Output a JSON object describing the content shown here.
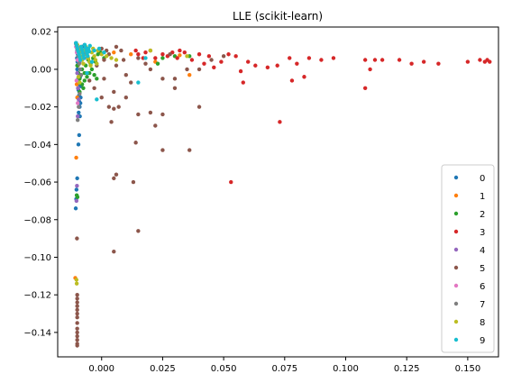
{
  "chart_data": {
    "type": "scatter",
    "title": "LLE (scikit-learn)",
    "xlabel": "",
    "ylabel": "",
    "xlim": [
      -0.018,
      0.1626
    ],
    "ylim": [
      -0.153,
      0.0225
    ],
    "x_ticks": [
      0.0,
      0.025,
      0.05,
      0.075,
      0.1,
      0.125,
      0.15
    ],
    "x_tick_labels": [
      "0.000",
      "0.025",
      "0.050",
      "0.075",
      "0.100",
      "0.125",
      "0.150"
    ],
    "y_ticks": [
      0.02,
      0.0,
      -0.02,
      -0.04,
      -0.06,
      -0.08,
      -0.1,
      -0.12,
      -0.14
    ],
    "y_tick_labels": [
      "0.02",
      "0.00",
      "−0.02",
      "−0.04",
      "−0.06",
      "−0.08",
      "−0.10",
      "−0.12",
      "−0.14"
    ],
    "grid": false,
    "legend_position": "lower-right",
    "series": [
      {
        "name": "0",
        "color": "#1f77b4",
        "points": [
          [
            -0.0105,
            0.014
          ],
          [
            -0.0102,
            0.012
          ],
          [
            -0.01,
            0.01
          ],
          [
            -0.0098,
            0.008
          ],
          [
            -0.0101,
            0.006
          ],
          [
            -0.0099,
            0.004
          ],
          [
            -0.0097,
            0.002
          ],
          [
            -0.01,
            0.0
          ],
          [
            -0.0098,
            -0.002
          ],
          [
            -0.0096,
            -0.005
          ],
          [
            -0.0094,
            -0.008
          ],
          [
            -0.0095,
            -0.011
          ],
          [
            -0.0093,
            -0.014
          ],
          [
            -0.0092,
            -0.017
          ],
          [
            -0.009,
            -0.02
          ],
          [
            -0.0094,
            -0.023
          ],
          [
            -0.0089,
            -0.025
          ],
          [
            -0.0087,
            -0.018
          ],
          [
            -0.0091,
            -0.012
          ],
          [
            -0.0086,
            -0.015
          ],
          [
            -0.0088,
            -0.004
          ],
          [
            -0.0085,
            -0.009
          ],
          [
            -0.0092,
            -0.035
          ],
          [
            -0.0095,
            -0.04
          ],
          [
            -0.01,
            -0.058
          ],
          [
            -0.0103,
            -0.064
          ],
          [
            -0.0106,
            -0.074
          ],
          [
            -0.0104,
            -0.069
          ],
          [
            -0.008,
            0.012
          ],
          [
            -0.0075,
            0.01
          ],
          [
            -0.007,
            0.013
          ]
        ]
      },
      {
        "name": "1",
        "color": "#ff7f0e",
        "points": [
          [
            -0.01,
            0.013
          ],
          [
            -0.0095,
            0.01
          ],
          [
            -0.009,
            0.006
          ],
          [
            -0.0098,
            0.002
          ],
          [
            -0.0102,
            -0.008
          ],
          [
            -0.01,
            -0.015
          ],
          [
            -0.0104,
            -0.047
          ],
          [
            -0.0108,
            -0.111
          ],
          [
            -0.006,
            0.01
          ],
          [
            0.012,
            0.008
          ],
          [
            0.022,
            0.004
          ],
          [
            0.032,
            0.0075
          ],
          [
            0.036,
            -0.003
          ],
          [
            -0.0085,
            0.012
          ],
          [
            0.005,
            0.009
          ]
        ]
      },
      {
        "name": "2",
        "color": "#2ca02c",
        "points": [
          [
            -0.01,
            0.002
          ],
          [
            -0.0095,
            -0.002
          ],
          [
            -0.009,
            -0.005
          ],
          [
            -0.008,
            -0.008
          ],
          [
            -0.007,
            -0.006
          ],
          [
            -0.006,
            -0.004
          ],
          [
            -0.005,
            -0.002
          ],
          [
            -0.004,
            0.0
          ],
          [
            -0.003,
            -0.003
          ],
          [
            -0.002,
            -0.005
          ],
          [
            -0.009,
            -0.012
          ],
          [
            -0.0085,
            -0.003
          ],
          [
            -0.0075,
            -0.01
          ],
          [
            -0.0065,
            0.002
          ],
          [
            -0.0055,
            0.005
          ],
          [
            -0.0045,
            0.003
          ],
          [
            -0.0035,
            0.006
          ],
          [
            -0.0025,
            0.004
          ],
          [
            -0.0015,
            0.008
          ],
          [
            -0.0005,
            0.009
          ],
          [
            0.001,
            0.006
          ],
          [
            -0.008,
            0.0
          ],
          [
            -0.01,
            0.009
          ],
          [
            -0.0095,
            0.011
          ],
          [
            -0.0102,
            -0.067
          ],
          [
            -0.0099,
            -0.068
          ],
          [
            0.025,
            0.006
          ],
          [
            0.03,
            0.007
          ],
          [
            0.036,
            0.007
          ],
          [
            0.023,
            0.003
          ],
          [
            -0.007,
            -0.002
          ]
        ]
      },
      {
        "name": "3",
        "color": "#d62728",
        "points": [
          [
            0.015,
            0.008
          ],
          [
            0.018,
            0.009
          ],
          [
            0.02,
            0.01
          ],
          [
            0.022,
            0.006
          ],
          [
            0.025,
            0.008
          ],
          [
            0.027,
            0.007
          ],
          [
            0.029,
            0.009
          ],
          [
            0.031,
            0.006
          ],
          [
            0.034,
            0.009
          ],
          [
            0.037,
            0.005
          ],
          [
            0.04,
            0.008
          ],
          [
            0.042,
            0.003
          ],
          [
            0.044,
            0.007
          ],
          [
            0.046,
            0.001
          ],
          [
            0.049,
            0.004
          ],
          [
            0.052,
            0.008
          ],
          [
            0.055,
            0.007
          ],
          [
            0.057,
            -0.001
          ],
          [
            0.06,
            0.004
          ],
          [
            0.063,
            0.002
          ],
          [
            0.068,
            0.001
          ],
          [
            0.072,
            0.002
          ],
          [
            0.077,
            0.006
          ],
          [
            0.08,
            0.003
          ],
          [
            0.085,
            0.006
          ],
          [
            0.09,
            0.005
          ],
          [
            0.095,
            0.006
          ],
          [
            0.083,
            -0.004
          ],
          [
            0.078,
            -0.006
          ],
          [
            0.058,
            -0.007
          ],
          [
            0.108,
            0.005
          ],
          [
            0.112,
            0.005
          ],
          [
            0.115,
            0.005
          ],
          [
            0.11,
            0.0
          ],
          [
            0.108,
            -0.01
          ],
          [
            0.122,
            0.005
          ],
          [
            0.127,
            0.003
          ],
          [
            0.132,
            0.004
          ],
          [
            0.138,
            0.003
          ],
          [
            0.15,
            0.004
          ],
          [
            0.155,
            0.005
          ],
          [
            0.157,
            0.004
          ],
          [
            0.158,
            0.005
          ],
          [
            0.159,
            0.004
          ],
          [
            0.053,
            -0.06
          ],
          [
            0.073,
            -0.028
          ],
          [
            0.014,
            0.01
          ],
          [
            0.017,
            0.006
          ],
          [
            0.032,
            0.01
          ]
        ]
      },
      {
        "name": "4",
        "color": "#9467bd",
        "points": [
          [
            -0.01,
            0.012
          ],
          [
            -0.0095,
            0.008
          ],
          [
            -0.009,
            0.004
          ],
          [
            -0.01,
            -0.002
          ],
          [
            -0.0097,
            -0.01
          ],
          [
            -0.0094,
            -0.016
          ],
          [
            -0.0101,
            -0.062
          ],
          [
            -0.0103,
            -0.07
          ],
          [
            -0.0098,
            -0.025
          ],
          [
            -0.007,
            0.006
          ],
          [
            -0.006,
            0.01
          ]
        ]
      },
      {
        "name": "5",
        "color": "#8c564b",
        "points": [
          [
            -0.01,
            -0.12
          ],
          [
            -0.01,
            -0.122
          ],
          [
            -0.01,
            -0.124
          ],
          [
            -0.01,
            -0.126
          ],
          [
            -0.01,
            -0.128
          ],
          [
            -0.01,
            -0.13
          ],
          [
            -0.01,
            -0.132
          ],
          [
            -0.01,
            -0.135
          ],
          [
            -0.01,
            -0.138
          ],
          [
            -0.01,
            -0.14
          ],
          [
            -0.01,
            -0.142
          ],
          [
            -0.01,
            -0.144
          ],
          [
            -0.01,
            -0.146
          ],
          [
            -0.01,
            -0.147
          ],
          [
            -0.0101,
            -0.09
          ],
          [
            0.005,
            -0.097
          ],
          [
            0.015,
            -0.086
          ],
          [
            0.006,
            -0.056
          ],
          [
            0.005,
            -0.058
          ],
          [
            0.013,
            -0.06
          ],
          [
            0.014,
            -0.039
          ],
          [
            0.025,
            -0.043
          ],
          [
            0.036,
            -0.043
          ],
          [
            0.022,
            -0.03
          ],
          [
            0.02,
            -0.023
          ],
          [
            0.025,
            -0.024
          ],
          [
            0.015,
            -0.024
          ],
          [
            0.03,
            -0.01
          ],
          [
            0.04,
            -0.02
          ],
          [
            0.005,
            -0.021
          ],
          [
            0.01,
            -0.015
          ],
          [
            0.005,
            -0.012
          ],
          [
            0.012,
            -0.007
          ],
          [
            0.01,
            -0.003
          ],
          [
            0.02,
            0.0
          ],
          [
            0.025,
            -0.005
          ],
          [
            0.03,
            -0.005
          ],
          [
            0.035,
            0.0
          ],
          [
            0.04,
            0.0
          ],
          [
            0.045,
            0.005
          ],
          [
            0.05,
            0.007
          ],
          [
            0.001,
            -0.005
          ],
          [
            -0.002,
            0.002
          ],
          [
            0.001,
            0.005
          ],
          [
            0.003,
            0.008
          ],
          [
            0.006,
            0.012
          ],
          [
            0.008,
            0.01
          ],
          [
            0.009,
            0.005
          ],
          [
            0.015,
            0.006
          ],
          [
            0.018,
            0.003
          ],
          [
            -0.005,
            -0.006
          ],
          [
            -0.003,
            -0.01
          ],
          [
            0.0,
            -0.015
          ],
          [
            0.003,
            -0.02
          ],
          [
            0.007,
            -0.02
          ],
          [
            0.004,
            -0.028
          ],
          [
            0.002,
            0.01
          ],
          [
            0.0,
            0.011
          ],
          [
            0.028,
            0.008
          ],
          [
            0.006,
            0.002
          ]
        ]
      },
      {
        "name": "6",
        "color": "#e377c2",
        "points": [
          [
            -0.0105,
            0.012
          ],
          [
            -0.0102,
            0.009
          ],
          [
            -0.0099,
            0.005
          ],
          [
            -0.0103,
            -0.006
          ],
          [
            -0.0098,
            -0.018
          ],
          [
            -0.0095,
            0.011
          ],
          [
            -0.008,
            0.006
          ]
        ]
      },
      {
        "name": "7",
        "color": "#7f7f7f",
        "points": [
          [
            -0.0105,
            0.0135
          ],
          [
            -0.01,
            0.011
          ],
          [
            -0.0096,
            0.007
          ],
          [
            -0.0092,
            0.003
          ],
          [
            -0.0088,
            0.0
          ],
          [
            -0.0084,
            -0.003
          ],
          [
            -0.009,
            -0.013
          ],
          [
            -0.0094,
            -0.02
          ],
          [
            -0.0098,
            -0.027
          ],
          [
            -0.007,
            0.008
          ]
        ]
      },
      {
        "name": "8",
        "color": "#bcbd22",
        "points": [
          [
            -0.01,
            0.013
          ],
          [
            -0.0095,
            0.011
          ],
          [
            -0.009,
            0.009
          ],
          [
            -0.0085,
            0.007
          ],
          [
            -0.008,
            0.005
          ],
          [
            -0.0075,
            0.003
          ],
          [
            -0.007,
            0.01
          ],
          [
            -0.0065,
            0.012
          ],
          [
            -0.006,
            0.008
          ],
          [
            -0.0055,
            0.006
          ],
          [
            -0.005,
            0.004
          ],
          [
            -0.0045,
            0.002
          ],
          [
            -0.004,
            0.009
          ],
          [
            -0.0035,
            0.011
          ],
          [
            -0.003,
            0.007
          ],
          [
            -0.0025,
            0.005
          ],
          [
            -0.002,
            0.003
          ],
          [
            -0.0015,
            0.01
          ],
          [
            0.0,
            0.008
          ],
          [
            0.002,
            0.007
          ],
          [
            0.004,
            0.006
          ],
          [
            0.006,
            0.005
          ],
          [
            -0.0095,
            -0.004
          ],
          [
            -0.009,
            -0.007
          ],
          [
            -0.0103,
            -0.112
          ],
          [
            -0.0102,
            -0.114
          ],
          [
            0.02,
            0.01
          ],
          [
            0.035,
            0.007
          ]
        ]
      },
      {
        "name": "9",
        "color": "#17becf",
        "points": [
          [
            -0.0105,
            0.014
          ],
          [
            -0.0102,
            0.0125
          ],
          [
            -0.0099,
            0.011
          ],
          [
            -0.0096,
            0.0095
          ],
          [
            -0.0093,
            0.008
          ],
          [
            -0.009,
            0.0065
          ],
          [
            -0.0087,
            0.005
          ],
          [
            -0.0084,
            0.012
          ],
          [
            -0.0081,
            0.0105
          ],
          [
            -0.0078,
            0.009
          ],
          [
            -0.0075,
            0.0075
          ],
          [
            -0.0072,
            0.006
          ],
          [
            -0.0069,
            0.013
          ],
          [
            -0.0066,
            0.0115
          ],
          [
            -0.0063,
            0.01
          ],
          [
            -0.006,
            0.0085
          ],
          [
            -0.0057,
            0.007
          ],
          [
            -0.0054,
            0.011
          ],
          [
            -0.0051,
            0.0095
          ],
          [
            -0.0048,
            0.0125
          ],
          [
            -0.003,
            0.01
          ],
          [
            -0.001,
            0.011
          ],
          [
            0.001,
            0.009
          ],
          [
            -0.002,
            -0.016
          ],
          [
            0.018,
            0.006
          ],
          [
            0.015,
            -0.007
          ],
          [
            -0.004,
            0.004
          ],
          [
            -0.006,
            -0.002
          ]
        ]
      }
    ]
  }
}
